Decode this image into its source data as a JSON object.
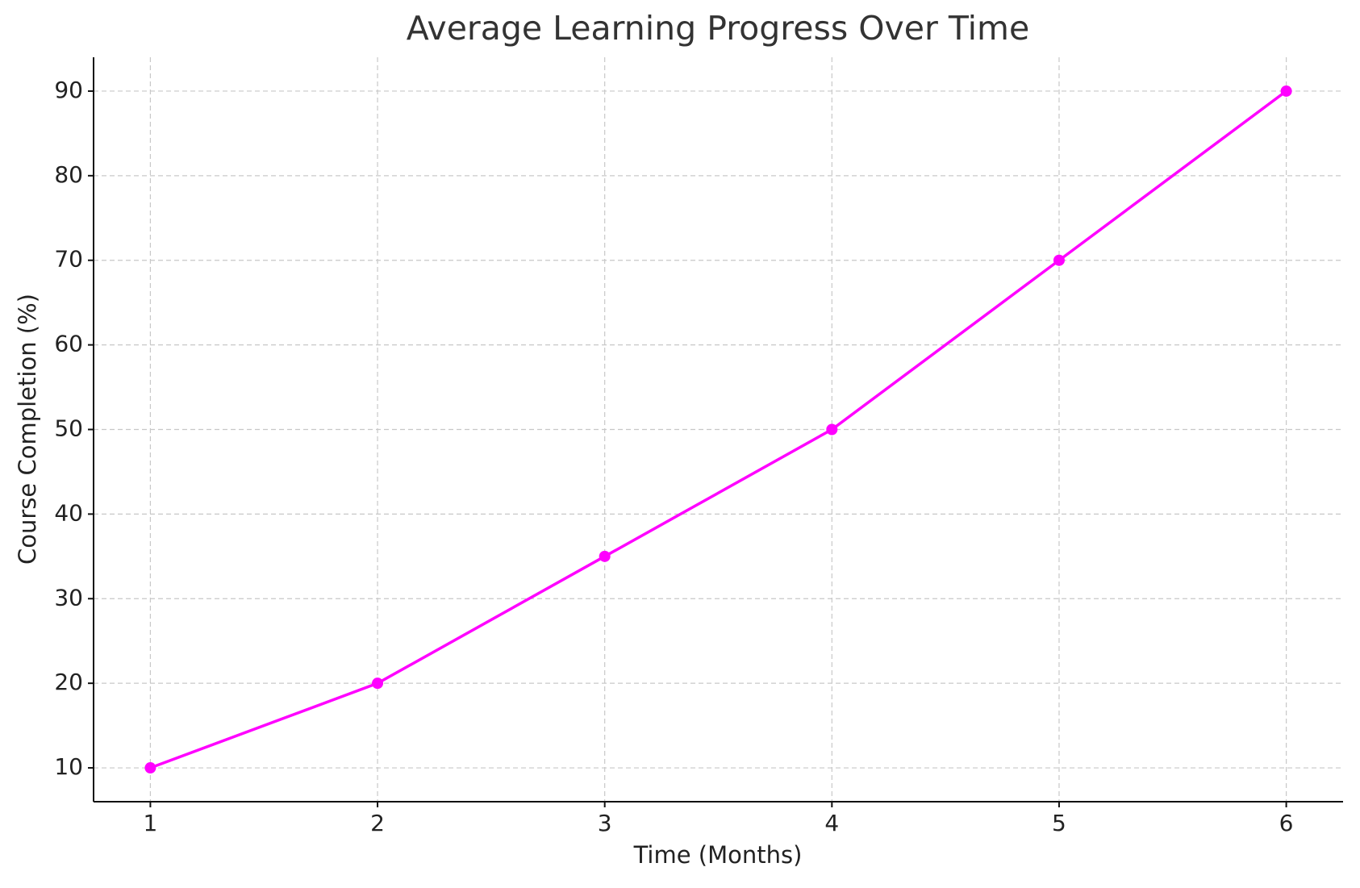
{
  "chart_data": {
    "type": "line",
    "title": "Average Learning Progress Over Time",
    "x_label": "Time (Months)",
    "y_label": "Course Completion (%)",
    "x": [
      1,
      2,
      3,
      4,
      5,
      6
    ],
    "series": [
      {
        "name": "Course Completion",
        "color": "#ff00ff",
        "values": [
          10,
          20,
          35,
          50,
          70,
          90
        ]
      }
    ],
    "xlim": [
      0.75,
      6.25
    ],
    "ylim": [
      6,
      94
    ],
    "xticks": [
      1,
      2,
      3,
      4,
      5,
      6
    ],
    "yticks": [
      10,
      20,
      30,
      40,
      50,
      60,
      70,
      80,
      90
    ],
    "grid": true,
    "legend": false
  }
}
